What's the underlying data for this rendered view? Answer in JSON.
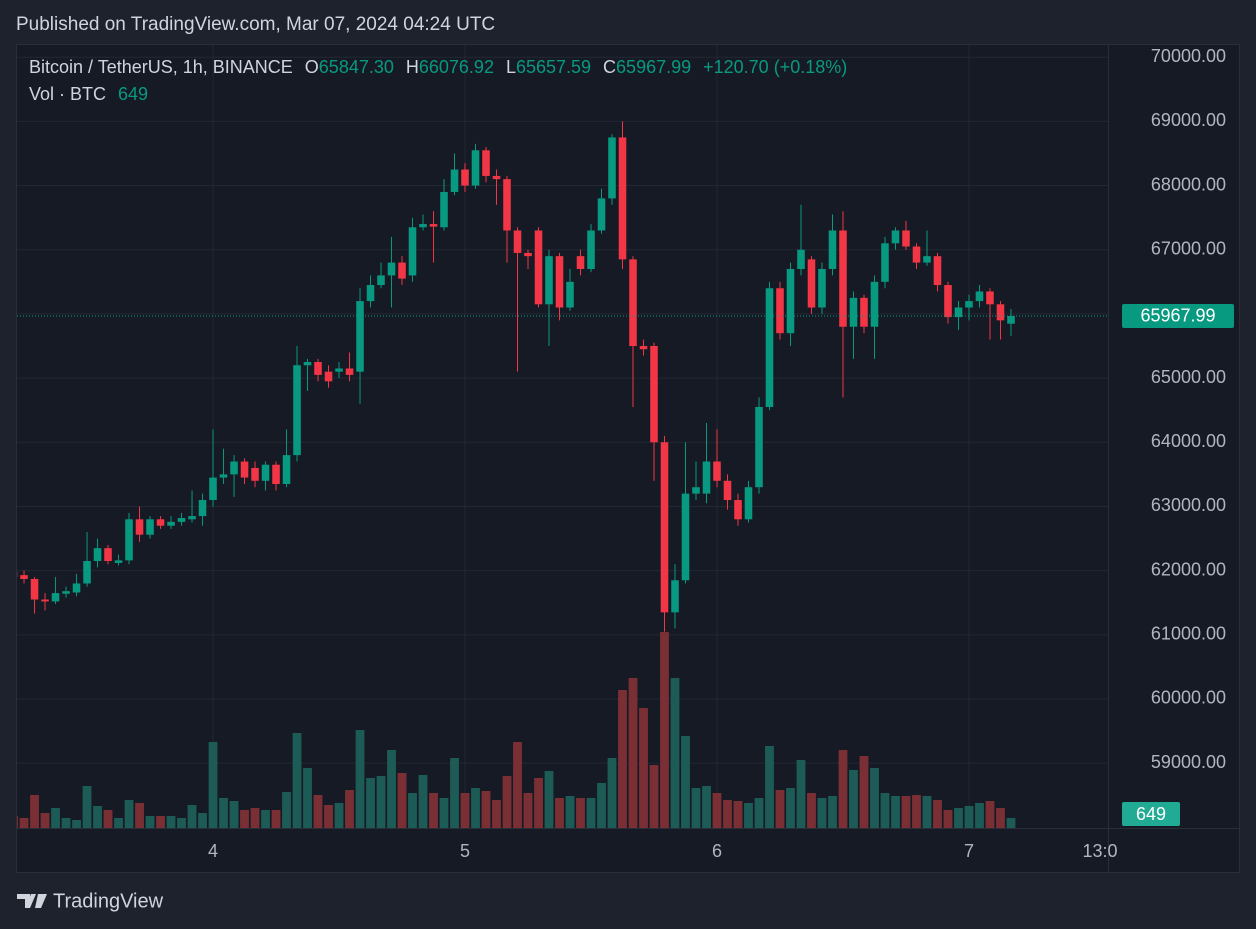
{
  "header": {
    "published": "Published on TradingView.com, Mar 07, 2024 04:24 UTC"
  },
  "footer": {
    "brand": "TradingView"
  },
  "chart_data": {
    "type": "candlestick",
    "title": "Bitcoin / TetherUS, 1h, BINANCE",
    "ohlc_legend": [
      {
        "key": "O",
        "value": "65847.30"
      },
      {
        "key": "H",
        "value": "66076.92"
      },
      {
        "key": "L",
        "value": "65657.59"
      },
      {
        "key": "C",
        "value": "65967.99"
      }
    ],
    "change": "+120.70 (+0.18%)",
    "volume_legend": {
      "label": "Vol · BTC",
      "value": "649"
    },
    "categories": [
      null,
      null,
      null,
      null,
      null,
      null,
      null,
      null,
      null,
      null,
      null,
      null,
      null,
      null,
      null,
      null,
      null,
      null,
      null,
      null,
      null,
      null,
      null,
      null,
      null,
      null,
      null,
      null,
      null,
      null,
      null,
      null,
      null,
      null,
      null,
      null,
      null,
      null,
      null,
      null,
      null,
      null,
      null,
      null,
      null,
      null,
      null,
      null,
      null,
      null,
      null,
      null,
      null,
      null,
      null,
      null,
      null,
      null,
      null,
      null,
      null,
      null,
      null,
      null,
      null,
      null,
      null,
      null,
      null,
      null,
      null,
      null,
      null,
      null,
      null,
      null,
      null,
      null,
      null,
      null,
      null,
      null,
      null,
      null,
      null,
      null,
      null,
      null,
      null,
      null,
      null,
      null,
      null,
      null,
      null,
      null
    ],
    "open": [
      61980,
      61930,
      61870,
      61550,
      61520,
      61640,
      61660,
      61800,
      62150,
      62350,
      62120,
      62160,
      62800,
      62560,
      62800,
      62700,
      62760,
      62800,
      62850,
      63100,
      63450,
      63500,
      63700,
      63600,
      63400,
      63650,
      63350,
      63800,
      65200,
      65250,
      65100,
      65100,
      65150,
      65100,
      66200,
      66450,
      66600,
      66800,
      66600,
      67350,
      67400,
      67350,
      67900,
      68250,
      68000,
      68550,
      68150,
      68100,
      67300,
      66950,
      67300,
      66150,
      66900,
      66100,
      66900,
      66700,
      67300,
      67800,
      68750,
      66850,
      65500,
      65500,
      64000,
      61350,
      61850,
      63200,
      63200,
      63700,
      63400,
      63100,
      62800,
      63300,
      64550,
      66400,
      65700,
      66700,
      66850,
      66100,
      66700,
      67300,
      65800,
      66250,
      65800,
      66500,
      67100,
      67300,
      67050,
      66800,
      66900,
      66450,
      65950,
      66100,
      66200,
      66350,
      66150,
      65847.3
    ],
    "high": [
      62050,
      62000,
      61900,
      61650,
      61900,
      61750,
      61950,
      62600,
      62500,
      62400,
      62250,
      62900,
      63000,
      62850,
      62850,
      62850,
      62900,
      63250,
      63200,
      64200,
      63900,
      63800,
      63750,
      63700,
      63700,
      63700,
      64200,
      65500,
      65300,
      65300,
      65200,
      65250,
      65400,
      66400,
      66600,
      66800,
      67200,
      66900,
      67500,
      67550,
      67600,
      68100,
      68500,
      68350,
      68650,
      68600,
      68250,
      68150,
      67350,
      67000,
      67350,
      67000,
      66950,
      66700,
      67000,
      67400,
      67950,
      68800,
      69000,
      66900,
      65600,
      65550,
      64100,
      62100,
      64000,
      63700,
      64300,
      64200,
      63500,
      63200,
      63400,
      64700,
      66500,
      66500,
      66800,
      67700,
      66900,
      66800,
      67550,
      67600,
      66350,
      66300,
      66600,
      67200,
      67350,
      67450,
      67100,
      67300,
      66950,
      66500,
      66200,
      66300,
      66450,
      66400,
      66200,
      66076.92
    ],
    "low": [
      61850,
      61800,
      61330,
      61380,
      61480,
      61580,
      61600,
      61750,
      62050,
      62100,
      62080,
      62100,
      62450,
      62500,
      62650,
      62650,
      62700,
      62750,
      62700,
      63000,
      63350,
      63150,
      63350,
      63300,
      63250,
      63250,
      63300,
      63700,
      64800,
      64950,
      64850,
      65000,
      64950,
      64600,
      66100,
      66400,
      66100,
      66450,
      66500,
      67300,
      66800,
      67300,
      67850,
      67900,
      67950,
      68050,
      67700,
      66800,
      65100,
      66700,
      66100,
      65500,
      65900,
      66050,
      66600,
      66650,
      67250,
      67700,
      66700,
      64550,
      65350,
      63400,
      61050,
      61100,
      61800,
      63100,
      63050,
      63300,
      62950,
      62700,
      62750,
      63200,
      64500,
      65600,
      65500,
      66600,
      66000,
      66000,
      66600,
      64700,
      65300,
      65700,
      65300,
      66400,
      67000,
      67000,
      66700,
      66750,
      66350,
      65850,
      65750,
      65900,
      66100,
      65600,
      65600,
      65657.59
    ],
    "close": [
      61900,
      61870,
      61550,
      61520,
      61650,
      61680,
      61800,
      62150,
      62350,
      62150,
      62160,
      62800,
      62560,
      62800,
      62700,
      62760,
      62820,
      62850,
      63100,
      63450,
      63500,
      63700,
      63450,
      63400,
      63650,
      63350,
      63800,
      65200,
      65250,
      65050,
      64950,
      65150,
      65050,
      66200,
      66450,
      66600,
      66800,
      66550,
      67350,
      67400,
      67360,
      67900,
      68250,
      68000,
      68550,
      68150,
      68100,
      67300,
      66950,
      66900,
      66150,
      66900,
      66100,
      66500,
      66700,
      67300,
      67800,
      68750,
      66850,
      65500,
      65450,
      64000,
      61350,
      61850,
      63200,
      63300,
      63700,
      63400,
      63100,
      62800,
      63300,
      64550,
      66400,
      65700,
      66700,
      67000,
      66100,
      66700,
      67300,
      65800,
      66250,
      65800,
      66500,
      67100,
      67300,
      67050,
      66800,
      66900,
      66450,
      65950,
      66100,
      66200,
      66350,
      66150,
      65900,
      65967.99
    ],
    "volume": [
      780,
      650,
      2145,
      975,
      1300,
      650,
      520,
      2730,
      1430,
      1170,
      650,
      1820,
      1625,
      780,
      780,
      780,
      650,
      1495,
      975,
      5590,
      1950,
      1755,
      1170,
      1300,
      1170,
      1170,
      2340,
      6175,
      3900,
      2145,
      1495,
      1625,
      2470,
      6370,
      3250,
      3380,
      5070,
      3575,
      2275,
      3445,
      2275,
      1950,
      4550,
      2275,
      2600,
      2405,
      1820,
      3380,
      5590,
      2275,
      3250,
      3705,
      1950,
      2080,
      1950,
      1950,
      2925,
      4550,
      8970,
      9750,
      7800,
      4095,
      12740,
      9750,
      5980,
      2600,
      2730,
      2275,
      1820,
      1755,
      1625,
      1950,
      5330,
      2470,
      2600,
      4420,
      2275,
      1950,
      2080,
      5070,
      3770,
      4680,
      3900,
      2275,
      2080,
      2080,
      2145,
      2080,
      1820,
      1170,
      1300,
      1430,
      1625,
      1755,
      1300,
      649
    ],
    "last_price_label": "65967.99",
    "up_color": "#089981",
    "down_color": "#f23645",
    "volume_up_color": "#1d5b56",
    "volume_down_color": "#7a2f35",
    "xlim": [
      0.33,
      104.24
    ],
    "xticks": [
      {
        "value": 19,
        "label": "4"
      },
      {
        "value": 43,
        "label": "5"
      },
      {
        "value": 67,
        "label": "6"
      },
      {
        "value": 91,
        "label": "7"
      },
      {
        "value": 104,
        "label": "13:0"
      }
    ],
    "ylim": [
      57990,
      70190
    ],
    "yticks": [
      {
        "value": 59000,
        "label": "59000.00"
      },
      {
        "value": 60000,
        "label": "60000.00"
      },
      {
        "value": 61000,
        "label": "61000.00"
      },
      {
        "value": 62000,
        "label": "62000.00"
      },
      {
        "value": 63000,
        "label": "63000.00"
      },
      {
        "value": 64000,
        "label": "64000.00"
      },
      {
        "value": 65000,
        "label": "65000.00"
      },
      {
        "value": 66000,
        "label": "66000.00"
      },
      {
        "value": 67000,
        "label": "67000.00"
      },
      {
        "value": 68000,
        "label": "68000.00"
      },
      {
        "value": 69000,
        "label": "69000.00"
      },
      {
        "value": 70000,
        "label": "70000.00"
      }
    ],
    "grid": true
  }
}
